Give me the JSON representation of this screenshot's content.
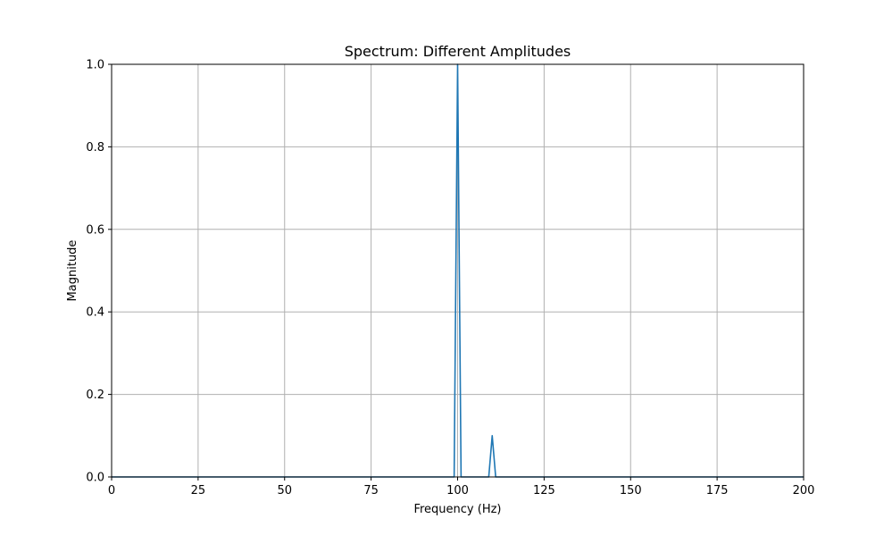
{
  "chart_data": {
    "type": "line",
    "title": "Spectrum: Different Amplitudes",
    "xlabel": "Frequency (Hz)",
    "ylabel": "Magnitude",
    "xlim": [
      0,
      200
    ],
    "ylim": [
      0,
      1.0
    ],
    "x_ticks": [
      0,
      25,
      50,
      75,
      100,
      125,
      150,
      175,
      200
    ],
    "y_ticks": [
      0.0,
      0.2,
      0.4,
      0.6,
      0.8,
      1.0
    ],
    "x_tick_labels": [
      "0",
      "25",
      "50",
      "75",
      "100",
      "125",
      "150",
      "175",
      "200"
    ],
    "y_tick_labels": [
      "0.0",
      "0.2",
      "0.4",
      "0.6",
      "0.8",
      "1.0"
    ],
    "grid": true,
    "series": [
      {
        "color": "#1f77b4",
        "x": [
          0,
          99,
          100,
          101,
          109,
          110,
          111,
          200
        ],
        "y": [
          0,
          0,
          1.0,
          0,
          0,
          0.1,
          0,
          0
        ]
      }
    ]
  }
}
